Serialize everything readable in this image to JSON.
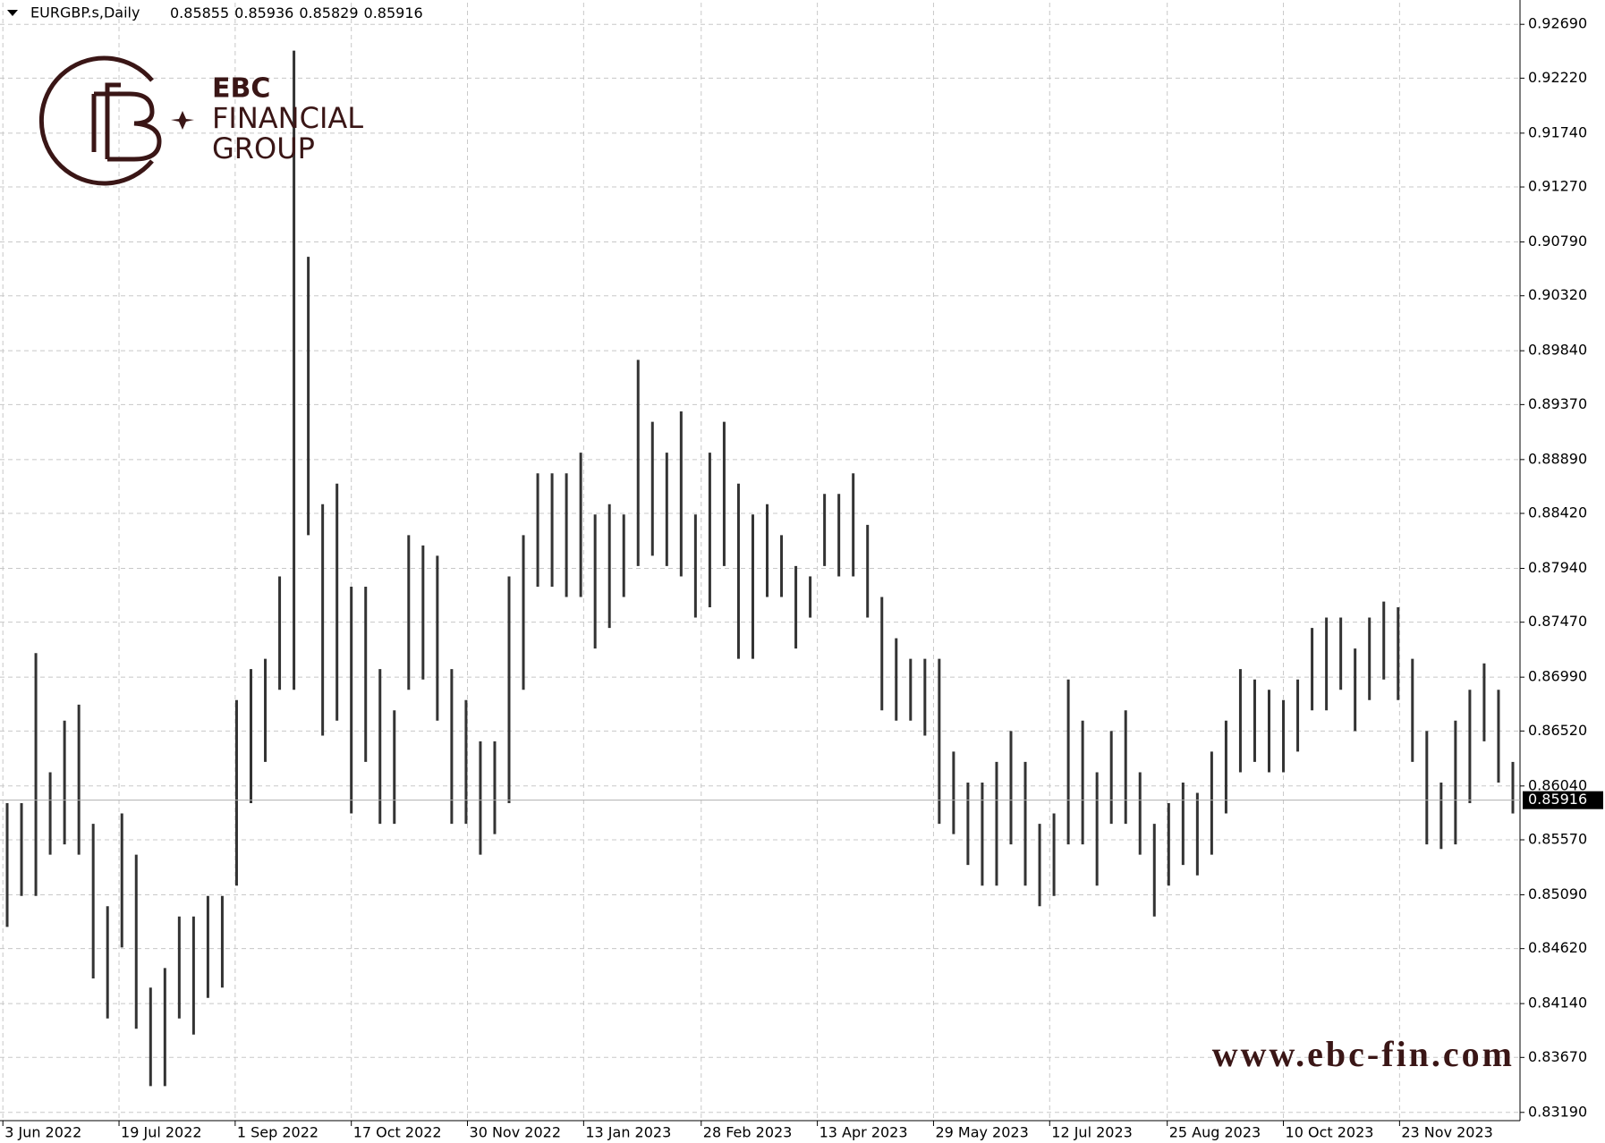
{
  "header": {
    "symbol": "EURGBP.s,Daily",
    "ohlc": [
      0.85855,
      0.85936,
      0.85829,
      0.85916
    ]
  },
  "logo": {
    "line1": "EBC",
    "line2": "FINANCIAL",
    "line3": "GROUP"
  },
  "watermark": "www.ebc-fin.com",
  "chart_data": {
    "type": "range-bar",
    "color": "#333333",
    "grid": true,
    "high": [
      0.8589,
      0.8589,
      0.872,
      0.8616,
      0.8661,
      0.8675,
      0.8571,
      0.8499,
      0.858,
      0.8544,
      0.8428,
      0.8445,
      0.849,
      0.849,
      0.8508,
      0.8508,
      0.8679,
      0.8706,
      0.8715,
      0.8787,
      0.9246,
      0.9066,
      0.885,
      0.8868,
      0.8778,
      0.8778,
      0.8706,
      0.867,
      0.8823,
      0.8814,
      0.8805,
      0.8706,
      0.8679,
      0.8643,
      0.8643,
      0.8787,
      0.8823,
      0.8877,
      0.8877,
      0.8877,
      0.8895,
      0.8841,
      0.885,
      0.8841,
      0.8976,
      0.8922,
      0.8895,
      0.8931,
      0.8841,
      0.8895,
      0.8922,
      0.8868,
      0.8841,
      0.885,
      0.8823,
      0.8796,
      0.8787,
      0.8859,
      0.8859,
      0.8877,
      0.8832,
      0.8769,
      0.8733,
      0.8715,
      0.8715,
      0.8715,
      0.8634,
      0.8607,
      0.8607,
      0.8625,
      0.8652,
      0.8625,
      0.8571,
      0.858,
      0.8697,
      0.8661,
      0.8616,
      0.8652,
      0.867,
      0.8616,
      0.8571,
      0.8589,
      0.8607,
      0.8598,
      0.8634,
      0.8661,
      0.8706,
      0.8697,
      0.8688,
      0.8679,
      0.8697,
      0.8742,
      0.8751,
      0.8751,
      0.8724,
      0.8751,
      0.8765,
      0.876,
      0.8715,
      0.8652,
      0.8607,
      0.8661,
      0.8688,
      0.8711,
      0.8688,
      0.8625
    ],
    "low": [
      0.8481,
      0.8508,
      0.8508,
      0.8544,
      0.8553,
      0.8544,
      0.8436,
      0.8401,
      0.8463,
      0.8392,
      0.8342,
      0.8342,
      0.8401,
      0.8387,
      0.8419,
      0.8428,
      0.8517,
      0.8589,
      0.8625,
      0.8688,
      0.8688,
      0.8823,
      0.8648,
      0.8661,
      0.858,
      0.8625,
      0.8571,
      0.8571,
      0.8688,
      0.8697,
      0.8661,
      0.8571,
      0.8571,
      0.8544,
      0.8562,
      0.8589,
      0.8688,
      0.8778,
      0.8778,
      0.8769,
      0.8769,
      0.8724,
      0.8742,
      0.8769,
      0.8796,
      0.8805,
      0.8796,
      0.8787,
      0.8751,
      0.876,
      0.8796,
      0.8715,
      0.8715,
      0.8769,
      0.8769,
      0.8724,
      0.8751,
      0.8796,
      0.8787,
      0.8787,
      0.8751,
      0.867,
      0.8661,
      0.8661,
      0.8648,
      0.8571,
      0.8562,
      0.8535,
      0.8517,
      0.8517,
      0.8553,
      0.8517,
      0.8499,
      0.8508,
      0.8553,
      0.8553,
      0.8517,
      0.8571,
      0.8571,
      0.8544,
      0.849,
      0.8517,
      0.8535,
      0.8526,
      0.8544,
      0.858,
      0.8616,
      0.8625,
      0.8616,
      0.8616,
      0.8634,
      0.867,
      0.867,
      0.8688,
      0.8652,
      0.8679,
      0.8697,
      0.8679,
      0.8625,
      0.8553,
      0.8549,
      0.8553,
      0.8589,
      0.8643,
      0.8607,
      0.858
    ],
    "xlim": [
      0,
      106
    ],
    "xticks": [
      {
        "value": 0.2,
        "label": "3 Jun 2022"
      },
      {
        "value": 8.3,
        "label": "19 Jul 2022"
      },
      {
        "value": 16.4,
        "label": "1 Sep 2022"
      },
      {
        "value": 24.5,
        "label": "17 Oct 2022"
      },
      {
        "value": 32.6,
        "label": "30 Nov 2022"
      },
      {
        "value": 40.7,
        "label": "13 Jan 2023"
      },
      {
        "value": 48.9,
        "label": "28 Feb 2023"
      },
      {
        "value": 57.0,
        "label": "13 Apr 2023"
      },
      {
        "value": 65.1,
        "label": "29 May 2023"
      },
      {
        "value": 73.2,
        "label": "12 Jul 2023"
      },
      {
        "value": 81.4,
        "label": "25 Aug 2023"
      },
      {
        "value": 89.5,
        "label": "10 Oct 2023"
      },
      {
        "value": 97.6,
        "label": "23 Nov 2023"
      }
    ],
    "ylim": [
      0.83118,
      0.92879
    ],
    "yticks": [
      {
        "value": 0.9269,
        "label": "0.92690"
      },
      {
        "value": 0.9222,
        "label": "0.92220"
      },
      {
        "value": 0.9174,
        "label": "0.91740"
      },
      {
        "value": 0.9127,
        "label": "0.91270"
      },
      {
        "value": 0.9079,
        "label": "0.90790"
      },
      {
        "value": 0.9032,
        "label": "0.90320"
      },
      {
        "value": 0.8984,
        "label": "0.89840"
      },
      {
        "value": 0.8937,
        "label": "0.89370"
      },
      {
        "value": 0.8889,
        "label": "0.88890"
      },
      {
        "value": 0.8842,
        "label": "0.88420"
      },
      {
        "value": 0.8794,
        "label": "0.87940"
      },
      {
        "value": 0.8747,
        "label": "0.87470"
      },
      {
        "value": 0.8699,
        "label": "0.86990"
      },
      {
        "value": 0.8652,
        "label": "0.86520"
      },
      {
        "value": 0.8604,
        "label": "0.86040"
      },
      {
        "value": 0.8557,
        "label": "0.85570"
      },
      {
        "value": 0.8509,
        "label": "0.85090"
      },
      {
        "value": 0.8462,
        "label": "0.84620"
      },
      {
        "value": 0.8414,
        "label": "0.84140"
      },
      {
        "value": 0.8367,
        "label": "0.83670"
      },
      {
        "value": 0.8319,
        "label": "0.83190"
      }
    ],
    "current_price": 0.85916
  }
}
